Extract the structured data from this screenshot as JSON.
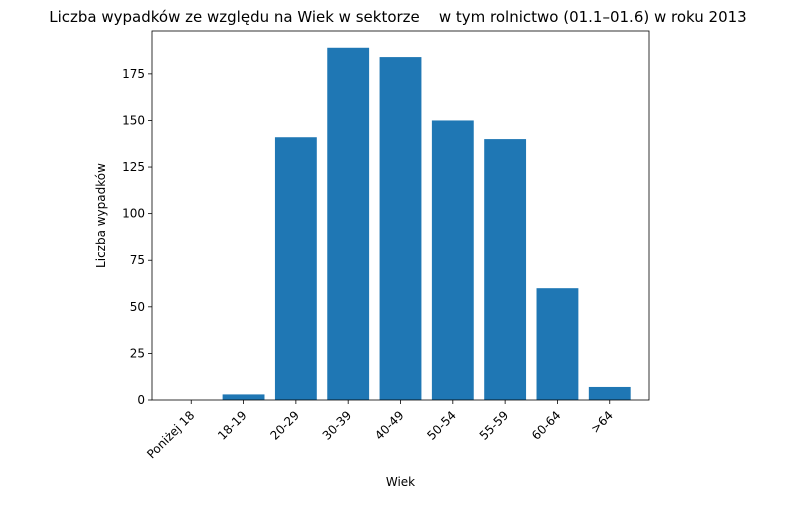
{
  "chart_data": {
    "type": "bar",
    "title": "Liczba wypadków ze względu na Wiek w sektorze    w tym rolnictwo (01.1–01.6) w roku 2013",
    "xlabel": "Wiek",
    "ylabel": "Liczba wypadków",
    "categories": [
      "Poniżej 18",
      "18-19",
      "20-29",
      "30-39",
      "40-49",
      "50-54",
      "55-59",
      "60-64",
      ">64"
    ],
    "values": [
      0,
      3,
      141,
      189,
      184,
      150,
      140,
      60,
      7
    ],
    "ylim": [
      0,
      198
    ],
    "yticks": [
      0,
      25,
      50,
      75,
      100,
      125,
      150,
      175
    ],
    "bar_color": "#1f77b4",
    "grid": false
  }
}
